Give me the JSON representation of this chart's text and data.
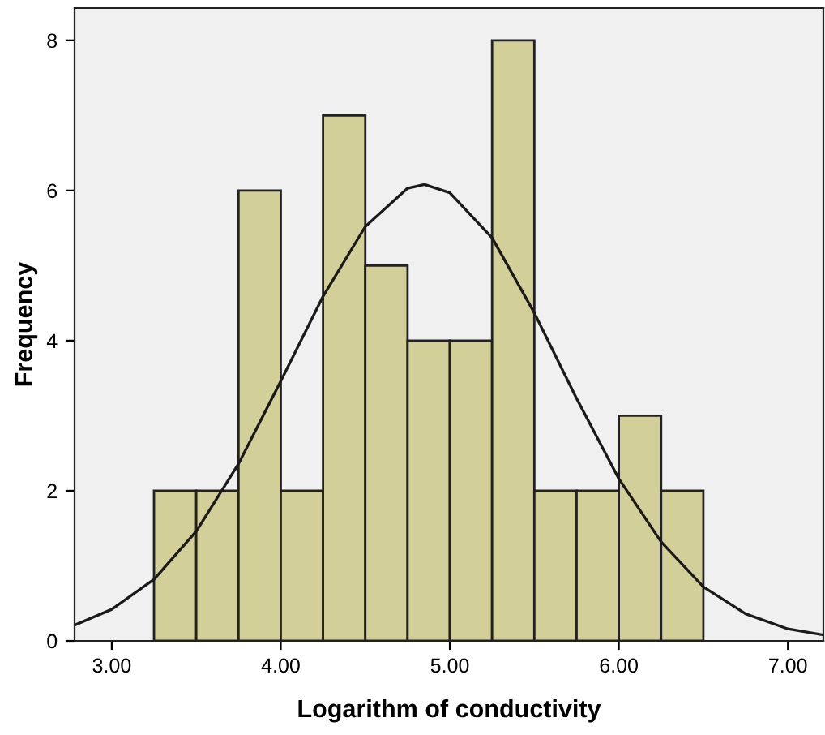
{
  "chart_data": {
    "type": "histogram",
    "xlabel": "Logarithm of conductivity",
    "ylabel": "Frequency",
    "bins": [
      3.25,
      3.5,
      3.75,
      4.0,
      4.25,
      4.5,
      4.75,
      5.0,
      5.25,
      5.5,
      5.75,
      6.0,
      6.25,
      6.5
    ],
    "values": [
      2,
      2,
      6,
      2,
      7,
      5,
      4,
      4,
      8,
      2,
      2,
      3,
      2
    ],
    "color": "#d3cf98",
    "series": [
      {
        "type": "line",
        "color": "#1a1a1a",
        "x": [
          2.78,
          3.0,
          3.25,
          3.5,
          3.75,
          4.0,
          4.25,
          4.5,
          4.75,
          4.85,
          5.0,
          5.25,
          5.5,
          5.75,
          6.0,
          6.25,
          6.5,
          6.75,
          7.0,
          7.21
        ],
        "values": [
          0.21,
          0.42,
          0.82,
          1.46,
          2.36,
          3.46,
          4.59,
          5.52,
          6.03,
          6.08,
          5.97,
          5.37,
          4.37,
          3.23,
          2.16,
          1.32,
          0.72,
          0.36,
          0.16,
          0.08
        ]
      }
    ],
    "xlim": [
      2.78,
      7.21
    ],
    "ylim": [
      0,
      8.43
    ],
    "xticks": [
      {
        "value": 3,
        "label": "3.00"
      },
      {
        "value": 4,
        "label": "4.00"
      },
      {
        "value": 5,
        "label": "5.00"
      },
      {
        "value": 6,
        "label": "6.00"
      },
      {
        "value": 7,
        "label": "7.00"
      }
    ],
    "yticks": [
      0,
      2,
      4,
      6,
      8
    ],
    "grid": false,
    "legend": false
  }
}
